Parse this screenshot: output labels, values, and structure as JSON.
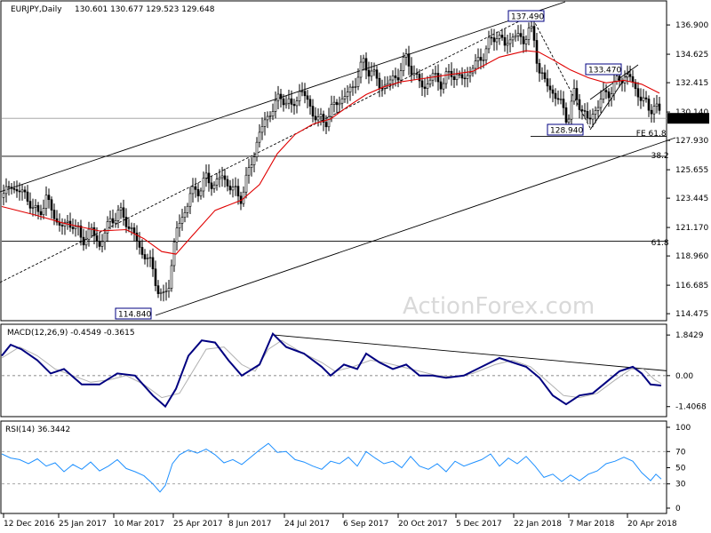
{
  "header": {
    "symbol": "EURJPY,Daily",
    "ohlc": "130.601 130.677 129.523 129.648",
    "macd": "MACD(12,26,9) -0.4549 -0.3615",
    "rsi": "RSI(14) 36.3442"
  },
  "watermark": "ActionForex.com",
  "colors": {
    "grid": "#d6d6d6",
    "candle": "#000000",
    "sma": "#e00000",
    "macd_line": "#000080",
    "macd_signal": "#b0b0b0",
    "rsi": "#1e90ff",
    "current_price_box": "#000000"
  },
  "chart_data": [
    {
      "type": "candlestick",
      "symbol": "EURJPY",
      "timeframe": "Daily",
      "ylim": [
        114.0,
        138.7
      ],
      "y_ticks": [
        "136.900",
        "134.625",
        "132.415",
        "130.140",
        "127.930",
        "125.655",
        "123.445",
        "121.170",
        "118.960",
        "116.685",
        "114.475"
      ],
      "current_price": "129.648",
      "x_ticks": [
        "12 Dec 2016",
        "25 Jan 2017",
        "10 Mar 2017",
        "25 Apr 2017",
        "8 Jun 2017",
        "24 Jul 2017",
        "6 Sep 2017",
        "20 Oct 2017",
        "5 Dec 2017",
        "22 Jan 2018",
        "7 Mar 2018",
        "20 Apr 2018"
      ],
      "price_path": [
        [
          0,
          123.5
        ],
        [
          10,
          124.4
        ],
        [
          22,
          123.9
        ],
        [
          32,
          123.2
        ],
        [
          40,
          122.0
        ],
        [
          50,
          123.5
        ],
        [
          60,
          121.8
        ],
        [
          70,
          121.2
        ],
        [
          80,
          121.6
        ],
        [
          90,
          120.1
        ],
        [
          100,
          121.0
        ],
        [
          110,
          119.8
        ],
        [
          120,
          121.4
        ],
        [
          130,
          122.4
        ],
        [
          140,
          121.7
        ],
        [
          150,
          120.4
        ],
        [
          158,
          119.2
        ],
        [
          166,
          118.6
        ],
        [
          174,
          116.9
        ],
        [
          181,
          115.4
        ],
        [
          188,
          116.9
        ],
        [
          196,
          120.8
        ],
        [
          204,
          122.1
        ],
        [
          212,
          123.7
        ],
        [
          222,
          124.2
        ],
        [
          230,
          124.9
        ],
        [
          238,
          124.5
        ],
        [
          248,
          125.1
        ],
        [
          258,
          124.3
        ],
        [
          268,
          123.4
        ],
        [
          278,
          125.4
        ],
        [
          288,
          128.1
        ],
        [
          296,
          129.4
        ],
        [
          306,
          130.6
        ],
        [
          316,
          131.4
        ],
        [
          326,
          130.4
        ],
        [
          336,
          131.9
        ],
        [
          346,
          130.7
        ],
        [
          356,
          129.4
        ],
        [
          366,
          129.6
        ],
        [
          376,
          130.9
        ],
        [
          386,
          131.3
        ],
        [
          396,
          132.2
        ],
        [
          406,
          133.9
        ],
        [
          416,
          133.3
        ],
        [
          426,
          132.1
        ],
        [
          436,
          132.4
        ],
        [
          446,
          133.1
        ],
        [
          456,
          134.4
        ],
        [
          466,
          132.7
        ],
        [
          476,
          132.1
        ],
        [
          486,
          133.0
        ],
        [
          496,
          132.3
        ],
        [
          506,
          133.3
        ],
        [
          516,
          132.6
        ],
        [
          526,
          133.2
        ],
        [
          536,
          134.1
        ],
        [
          546,
          135.1
        ],
        [
          556,
          136.3
        ],
        [
          566,
          135.3
        ],
        [
          576,
          136.2
        ],
        [
          586,
          135.6
        ],
        [
          592,
          136.6
        ],
        [
          598,
          136.0
        ],
        [
          604,
          133.6
        ],
        [
          612,
          132.3
        ],
        [
          620,
          131.7
        ],
        [
          628,
          130.9
        ],
        [
          636,
          129.6
        ],
        [
          644,
          131.4
        ],
        [
          652,
          130.6
        ],
        [
          660,
          129.3
        ],
        [
          668,
          130.4
        ],
        [
          676,
          131.3
        ],
        [
          684,
          131.8
        ],
        [
          692,
          132.4
        ],
        [
          700,
          133.0
        ],
        [
          708,
          132.7
        ],
        [
          716,
          131.5
        ],
        [
          722,
          131.1
        ],
        [
          728,
          130.2
        ],
        [
          734,
          130.9
        ],
        [
          740,
          129.8
        ]
      ],
      "moving_average_path": [
        [
          0,
          122.8
        ],
        [
          40,
          122.1
        ],
        [
          70,
          121.5
        ],
        [
          110,
          120.9
        ],
        [
          140,
          121.0
        ],
        [
          160,
          120.3
        ],
        [
          180,
          119.3
        ],
        [
          196,
          119.1
        ],
        [
          214,
          120.5
        ],
        [
          240,
          122.5
        ],
        [
          270,
          123.3
        ],
        [
          290,
          124.5
        ],
        [
          310,
          126.9
        ],
        [
          330,
          128.4
        ],
        [
          350,
          129.2
        ],
        [
          370,
          129.6
        ],
        [
          390,
          130.6
        ],
        [
          410,
          131.5
        ],
        [
          430,
          132.1
        ],
        [
          450,
          132.5
        ],
        [
          470,
          132.7
        ],
        [
          500,
          133.0
        ],
        [
          530,
          133.3
        ],
        [
          560,
          134.4
        ],
        [
          590,
          134.9
        ],
        [
          604,
          134.8
        ],
        [
          620,
          134.2
        ],
        [
          640,
          133.4
        ],
        [
          660,
          132.8
        ],
        [
          680,
          132.4
        ],
        [
          700,
          132.6
        ],
        [
          720,
          132.3
        ],
        [
          740,
          131.6
        ]
      ],
      "annotations": [
        {
          "text": "137.490",
          "x": 597,
          "y": 137.49
        },
        {
          "text": "133.470",
          "x": 707,
          "y": 133.47
        },
        {
          "text": "128.940",
          "x": 663,
          "y": 128.94
        },
        {
          "text": "114.840",
          "x": 181,
          "y": 114.84
        },
        {
          "text": "FE 61.8",
          "x": 742,
          "y": 128.6
        },
        {
          "text": "38.2",
          "x": 742,
          "y": 126.7
        },
        {
          "text": "61.8",
          "x": 742,
          "y": 120.1
        }
      ],
      "horizontal_levels": [
        {
          "label": "38.2",
          "value": 126.7
        },
        {
          "label": "61.8",
          "value": 120.1
        }
      ]
    },
    {
      "type": "line",
      "name": "MACD(12,26,9)",
      "ylim": [
        -1.7,
        2.05
      ],
      "y_ticks": [
        "1.8429",
        "0.00",
        "-1.4068"
      ],
      "macd_path": [
        [
          0,
          0.9
        ],
        [
          10,
          1.4
        ],
        [
          22,
          1.2
        ],
        [
          40,
          0.7
        ],
        [
          55,
          0.1
        ],
        [
          70,
          0.3
        ],
        [
          90,
          -0.4
        ],
        [
          110,
          -0.4
        ],
        [
          130,
          0.1
        ],
        [
          150,
          0.0
        ],
        [
          170,
          -0.9
        ],
        [
          184,
          -1.4
        ],
        [
          196,
          -0.6
        ],
        [
          210,
          0.9
        ],
        [
          225,
          1.6
        ],
        [
          240,
          1.5
        ],
        [
          255,
          0.7
        ],
        [
          270,
          0.0
        ],
        [
          290,
          0.5
        ],
        [
          305,
          1.9
        ],
        [
          320,
          1.3
        ],
        [
          340,
          1.0
        ],
        [
          360,
          0.4
        ],
        [
          370,
          0.0
        ],
        [
          385,
          0.5
        ],
        [
          400,
          0.3
        ],
        [
          410,
          1.0
        ],
        [
          425,
          0.6
        ],
        [
          440,
          0.3
        ],
        [
          455,
          0.5
        ],
        [
          470,
          0.0
        ],
        [
          485,
          0.0
        ],
        [
          500,
          -0.1
        ],
        [
          520,
          0.0
        ],
        [
          540,
          0.4
        ],
        [
          560,
          0.8
        ],
        [
          575,
          0.6
        ],
        [
          590,
          0.4
        ],
        [
          605,
          -0.1
        ],
        [
          620,
          -0.9
        ],
        [
          635,
          -1.3
        ],
        [
          650,
          -0.9
        ],
        [
          665,
          -0.8
        ],
        [
          680,
          -0.3
        ],
        [
          695,
          0.2
        ],
        [
          710,
          0.4
        ],
        [
          720,
          0.1
        ],
        [
          730,
          -0.4
        ],
        [
          742,
          -0.45
        ]
      ],
      "signal_path": [
        [
          0,
          0.8
        ],
        [
          20,
          1.3
        ],
        [
          40,
          0.9
        ],
        [
          60,
          0.3
        ],
        [
          80,
          0.0
        ],
        [
          100,
          -0.3
        ],
        [
          120,
          -0.2
        ],
        [
          140,
          0.0
        ],
        [
          160,
          -0.4
        ],
        [
          180,
          -1.0
        ],
        [
          200,
          -0.8
        ],
        [
          215,
          0.2
        ],
        [
          230,
          1.2
        ],
        [
          250,
          1.3
        ],
        [
          270,
          0.5
        ],
        [
          285,
          0.2
        ],
        [
          300,
          1.2
        ],
        [
          315,
          1.6
        ],
        [
          335,
          1.1
        ],
        [
          360,
          0.6
        ],
        [
          375,
          0.2
        ],
        [
          395,
          0.4
        ],
        [
          415,
          0.7
        ],
        [
          430,
          0.6
        ],
        [
          450,
          0.4
        ],
        [
          470,
          0.2
        ],
        [
          490,
          0.0
        ],
        [
          510,
          -0.05
        ],
        [
          530,
          0.1
        ],
        [
          555,
          0.5
        ],
        [
          575,
          0.7
        ],
        [
          595,
          0.4
        ],
        [
          615,
          -0.3
        ],
        [
          632,
          -0.9
        ],
        [
          650,
          -1.0
        ],
        [
          670,
          -0.8
        ],
        [
          690,
          -0.2
        ],
        [
          708,
          0.3
        ],
        [
          722,
          0.3
        ],
        [
          735,
          -0.2
        ],
        [
          742,
          -0.36
        ]
      ],
      "trendline": [
        [
          305,
          1.85
        ],
        [
          748,
          0.22
        ]
      ]
    },
    {
      "type": "line",
      "name": "RSI(14)",
      "ylim": [
        0,
        100
      ],
      "y_ticks": [
        "100",
        "70",
        "50",
        "30",
        "0"
      ],
      "levels": [
        70,
        30
      ],
      "rsi_path": [
        [
          0,
          67
        ],
        [
          10,
          62
        ],
        [
          20,
          60
        ],
        [
          30,
          55
        ],
        [
          40,
          61
        ],
        [
          50,
          52
        ],
        [
          60,
          56
        ],
        [
          70,
          45
        ],
        [
          80,
          54
        ],
        [
          90,
          48
        ],
        [
          100,
          57
        ],
        [
          110,
          46
        ],
        [
          120,
          52
        ],
        [
          130,
          60
        ],
        [
          140,
          49
        ],
        [
          150,
          45
        ],
        [
          160,
          40
        ],
        [
          170,
          30
        ],
        [
          178,
          20
        ],
        [
          184,
          28
        ],
        [
          192,
          55
        ],
        [
          200,
          66
        ],
        [
          210,
          72
        ],
        [
          220,
          68
        ],
        [
          230,
          73
        ],
        [
          240,
          66
        ],
        [
          250,
          56
        ],
        [
          260,
          60
        ],
        [
          270,
          54
        ],
        [
          280,
          63
        ],
        [
          290,
          72
        ],
        [
          300,
          80
        ],
        [
          310,
          69
        ],
        [
          320,
          70
        ],
        [
          330,
          60
        ],
        [
          340,
          57
        ],
        [
          350,
          52
        ],
        [
          360,
          48
        ],
        [
          370,
          58
        ],
        [
          380,
          55
        ],
        [
          390,
          63
        ],
        [
          400,
          52
        ],
        [
          410,
          70
        ],
        [
          420,
          62
        ],
        [
          430,
          55
        ],
        [
          440,
          58
        ],
        [
          450,
          50
        ],
        [
          460,
          64
        ],
        [
          470,
          52
        ],
        [
          480,
          48
        ],
        [
          490,
          55
        ],
        [
          500,
          45
        ],
        [
          510,
          58
        ],
        [
          520,
          52
        ],
        [
          530,
          56
        ],
        [
          540,
          60
        ],
        [
          550,
          67
        ],
        [
          560,
          52
        ],
        [
          570,
          62
        ],
        [
          580,
          55
        ],
        [
          590,
          64
        ],
        [
          600,
          52
        ],
        [
          610,
          38
        ],
        [
          620,
          42
        ],
        [
          630,
          33
        ],
        [
          640,
          41
        ],
        [
          650,
          34
        ],
        [
          660,
          42
        ],
        [
          670,
          46
        ],
        [
          680,
          55
        ],
        [
          690,
          58
        ],
        [
          700,
          63
        ],
        [
          710,
          58
        ],
        [
          720,
          44
        ],
        [
          730,
          34
        ],
        [
          736,
          42
        ],
        [
          742,
          36
        ]
      ]
    }
  ]
}
